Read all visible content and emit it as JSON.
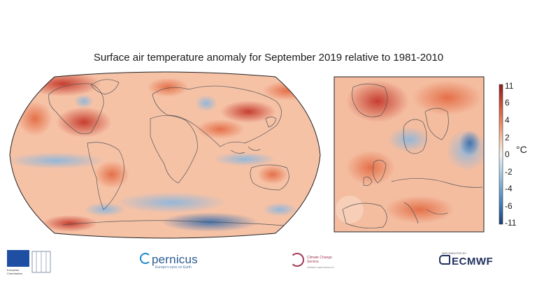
{
  "title": "Surface air temperature anomaly for September 2019 relative to 1981-2010",
  "colorbar": {
    "ticks": [
      "11",
      "6",
      "4",
      "2",
      "0",
      "-2",
      "-4",
      "-6",
      "-11"
    ],
    "unit": "°C",
    "colors": [
      "#b2182b",
      "#d6604d",
      "#f4a582",
      "#fddbc7",
      "#f7f7f7",
      "#d1e5f0",
      "#92c5de",
      "#4393c3",
      "#2166ac"
    ]
  },
  "maps": {
    "global": "global-anomaly-map",
    "europe": "europe-anomaly-map"
  },
  "logos": {
    "eu": {
      "text": "European Commission"
    },
    "copernicus": {
      "name": "pernicus",
      "sub": "Europe's eyes on Earth"
    },
    "c3s": {
      "name": "Climate Change Service",
      "sub": "climate.copernicus.eu"
    },
    "ecmwf": {
      "name": "ECMWF",
      "top": "IMPLEMENTED BY"
    }
  }
}
